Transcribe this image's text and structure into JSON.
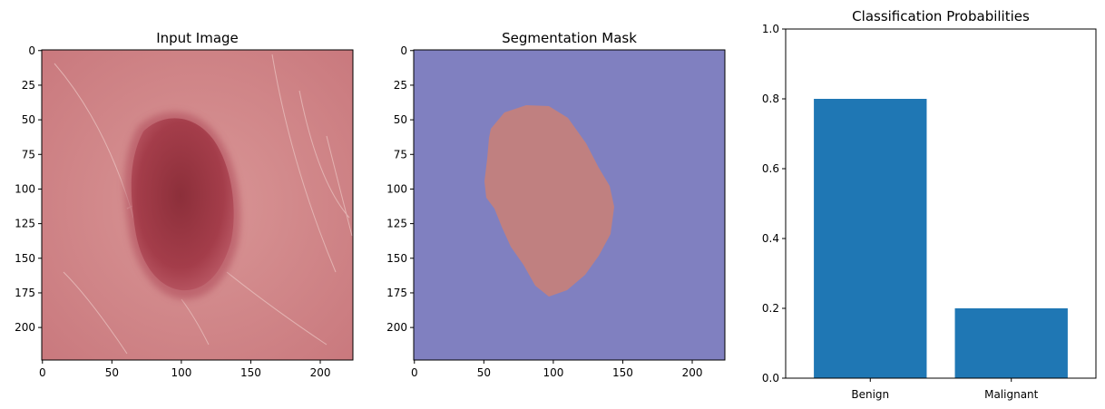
{
  "chart_data": [
    {
      "type": "image",
      "title": "Input Image",
      "x_ticks": [
        0,
        50,
        100,
        150,
        200
      ],
      "y_ticks": [
        0,
        25,
        50,
        75,
        100,
        125,
        150,
        175,
        200
      ],
      "xlim": [
        -0.5,
        223.5
      ],
      "ylim": [
        223.5,
        -0.5
      ],
      "colors": {
        "skin_light": "#dba0a0",
        "skin_base": "#c9787e",
        "lesion": "#a43d4a",
        "lesion_core": "#8c2f3a"
      }
    },
    {
      "type": "image",
      "title": "Segmentation Mask",
      "x_ticks": [
        0,
        50,
        100,
        150,
        200
      ],
      "y_ticks": [
        0,
        25,
        50,
        75,
        100,
        125,
        150,
        175,
        200
      ],
      "xlim": [
        -0.5,
        223.5
      ],
      "ylim": [
        223.5,
        -0.5
      ],
      "colors": {
        "background": "#8080c0",
        "lesion": "#c08080"
      }
    },
    {
      "type": "bar",
      "title": "Classification Probabilities",
      "categories": [
        "Benign",
        "Malignant"
      ],
      "values": [
        0.8,
        0.2
      ],
      "ylim": [
        0,
        1
      ],
      "y_ticks": [
        0.0,
        0.2,
        0.4,
        0.6,
        0.8,
        1.0
      ],
      "color": "#1f77b4"
    }
  ]
}
